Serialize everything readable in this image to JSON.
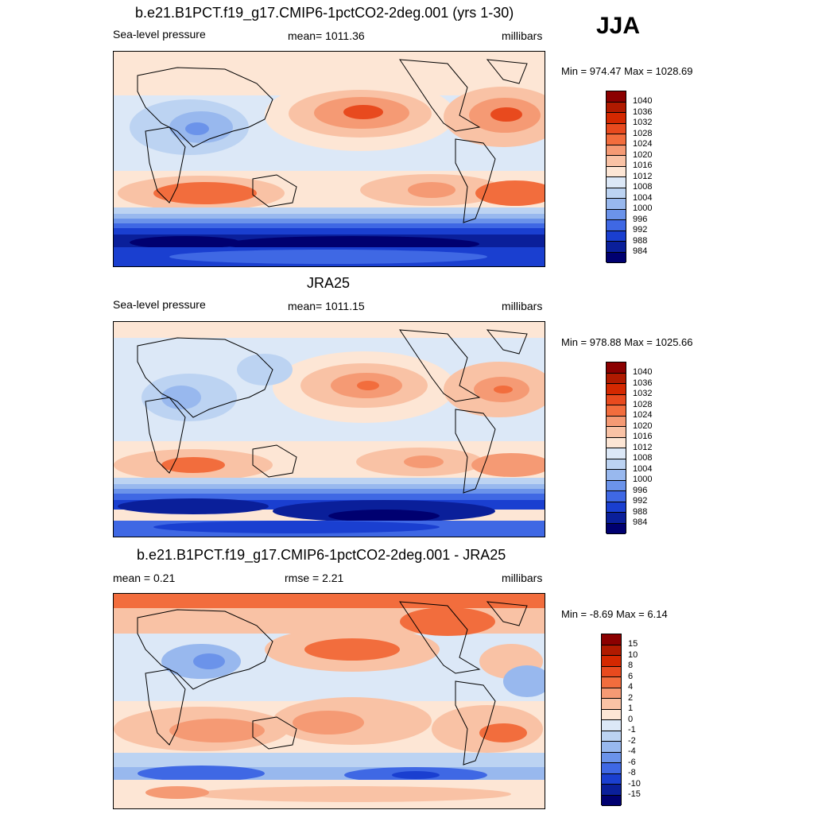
{
  "season": "JJA",
  "panels": [
    {
      "title": "b.e21.B1PCT.f19_g17.CMIP6-1pctCO2-2deg.001 (yrs 1-30)",
      "left_label": "Sea-level pressure",
      "center_label": "mean= 1011.36",
      "right_label": "millibars",
      "minmax": "Min = 974.47 Max = 1028.69"
    },
    {
      "title": "JRA25",
      "left_label": "Sea-level pressure",
      "center_label": "mean= 1011.15",
      "right_label": "millibars",
      "minmax": "Min = 978.88 Max = 1025.66"
    },
    {
      "title": "b.e21.B1PCT.f19_g17.CMIP6-1pctCO2-2deg.001 - JRA25",
      "left_label": "mean =   0.21",
      "center_label": "rmse =   2.21",
      "right_label": "millibars",
      "minmax": "Min =  -8.69 Max =   6.14"
    }
  ],
  "colorbars": {
    "slp": {
      "labels": [
        "1040",
        "1036",
        "1032",
        "1028",
        "1024",
        "1020",
        "1016",
        "1012",
        "1008",
        "1004",
        "1000",
        "996",
        "992",
        "988",
        "984"
      ],
      "colors": [
        "#8b0000",
        "#b01a00",
        "#d42800",
        "#e84a1e",
        "#f26d3d",
        "#f59a74",
        "#f9c2a5",
        "#fde6d5",
        "#dce8f7",
        "#bcd3f2",
        "#98b8ee",
        "#6b93ea",
        "#3f68e4",
        "#1a3fd0",
        "#0a1f9a",
        "#000070"
      ]
    },
    "diff": {
      "labels": [
        "15",
        "10",
        "8",
        "6",
        "4",
        "2",
        "1",
        "0",
        "-1",
        "-2",
        "-4",
        "-6",
        "-8",
        "-10",
        "-15"
      ],
      "colors": [
        "#8b0000",
        "#b01a00",
        "#d42800",
        "#e84a1e",
        "#f26d3d",
        "#f59a74",
        "#f9c2a5",
        "#fde6d5",
        "#dce8f7",
        "#bcd3f2",
        "#98b8ee",
        "#6b93ea",
        "#3f68e4",
        "#1a3fd0",
        "#0a1f9a",
        "#000070"
      ]
    }
  }
}
